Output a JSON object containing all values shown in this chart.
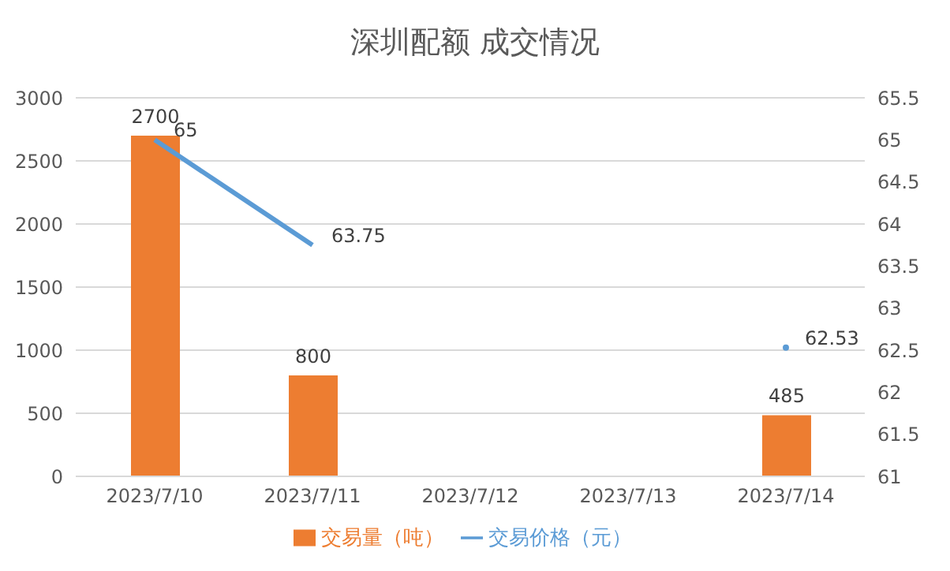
{
  "chart_data": {
    "type": "bar",
    "title": "深圳配额 成交情况",
    "categories": [
      "2023/7/10",
      "2023/7/11",
      "2023/7/12",
      "2023/7/13",
      "2023/7/14"
    ],
    "series": [
      {
        "name": "交易量（吨）",
        "color": "#ed7d31",
        "values": [
          2700,
          800,
          null,
          null,
          485
        ]
      },
      {
        "name": "交易价格（元）",
        "type": "line",
        "axis": "y2",
        "color": "#5b9bd5",
        "values": [
          65,
          63.75,
          null,
          null,
          62.53
        ]
      }
    ],
    "ylim": [
      0,
      3000
    ],
    "yticks": [
      0,
      500,
      1000,
      1500,
      2000,
      2500,
      3000
    ],
    "y2lim": [
      61,
      65.5
    ],
    "y2ticks": [
      61,
      61.5,
      62,
      62.5,
      63,
      63.5,
      64,
      64.5,
      65,
      65.5
    ],
    "grid": "y",
    "legend": "bottom",
    "data_labels": true,
    "marker": "none",
    "line_style": "solid"
  }
}
